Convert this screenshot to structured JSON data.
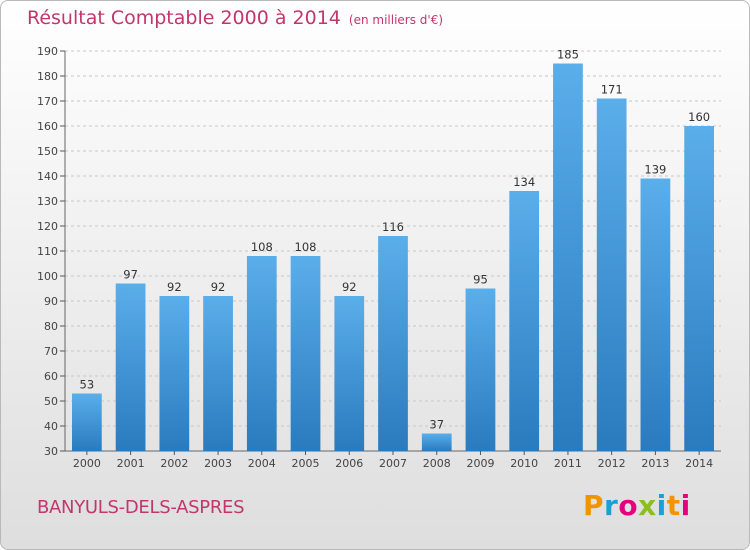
{
  "chart_data": {
    "type": "bar",
    "title": "Résultat Comptable 2000 à 2014",
    "subtitle": "(en milliers d'€)",
    "categories": [
      "2000",
      "2001",
      "2002",
      "2003",
      "2004",
      "2005",
      "2006",
      "2007",
      "2008",
      "2009",
      "2010",
      "2011",
      "2012",
      "2013",
      "2014"
    ],
    "values": [
      53,
      97,
      92,
      92,
      108,
      108,
      92,
      116,
      37,
      95,
      134,
      185,
      171,
      139,
      160
    ],
    "ylim": [
      30,
      190
    ],
    "yticks": [
      30,
      40,
      50,
      60,
      70,
      80,
      90,
      100,
      110,
      120,
      130,
      140,
      150,
      160,
      170,
      180,
      190
    ],
    "grid": true,
    "legend": "none",
    "colors": {
      "bar_light": "#5aaeea",
      "bar_dark": "#2a7bbe",
      "title": "#c2376b",
      "grid": "#c8c8c8"
    }
  },
  "commune": "BANYULS-DELS-ASPRES",
  "logo": {
    "letters": [
      "P",
      "r",
      "o",
      "x",
      "i",
      "t",
      "i"
    ],
    "colors": [
      "#f29400",
      "#1a9fd9",
      "#e5007e",
      "#8cbe22",
      "#1a9fd9",
      "#f29400",
      "#e5007e"
    ]
  }
}
